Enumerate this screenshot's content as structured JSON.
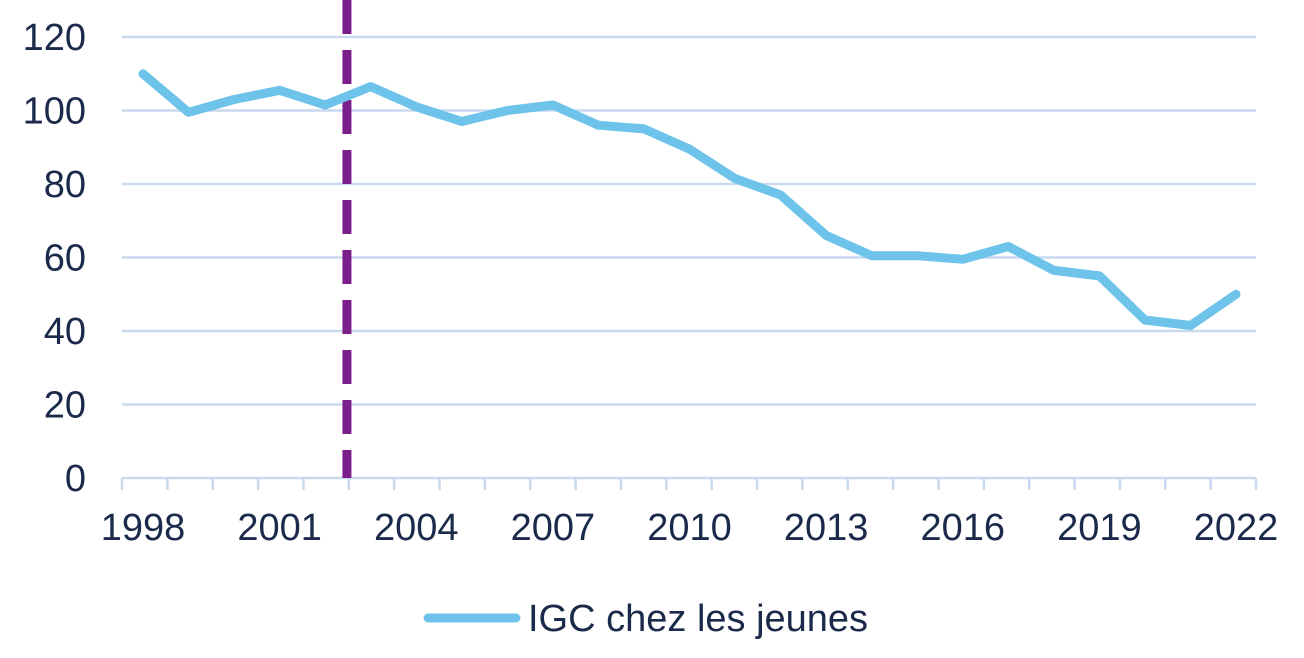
{
  "colors": {
    "series": "#6ec3ea",
    "grid": "#c9d9ee",
    "marker": "#7b1f8c",
    "text": "#1b2a4a",
    "axis": "#c9d9ee"
  },
  "chart_data": {
    "type": "line",
    "title": "",
    "xlabel": "",
    "ylabel": "",
    "ylim": [
      0,
      120
    ],
    "xlim": [
      1998,
      2022
    ],
    "y_ticks": [
      0,
      20,
      40,
      60,
      80,
      100,
      120
    ],
    "x_tick_labels": [
      "1998",
      "2001",
      "2004",
      "2007",
      "2010",
      "2013",
      "2016",
      "2019",
      "2022"
    ],
    "grid": "horizontal",
    "legend_position": "bottom-center",
    "vertical_marker": {
      "x": 2002.5,
      "style": "dashed"
    },
    "x": [
      1998,
      1999,
      2000,
      2001,
      2002,
      2003,
      2004,
      2005,
      2006,
      2007,
      2008,
      2009,
      2010,
      2011,
      2012,
      2013,
      2014,
      2015,
      2016,
      2017,
      2018,
      2019,
      2020,
      2021,
      2022
    ],
    "series": [
      {
        "name": "IGC chez les jeunes",
        "values": [
          110,
          99.5,
          103,
          105.5,
          101.5,
          106.5,
          101,
          97,
          100,
          101.5,
          96,
          95,
          89.5,
          81.5,
          77,
          66,
          60.5,
          60.5,
          59.5,
          63,
          56.5,
          55,
          43,
          41.5,
          50
        ]
      }
    ]
  }
}
